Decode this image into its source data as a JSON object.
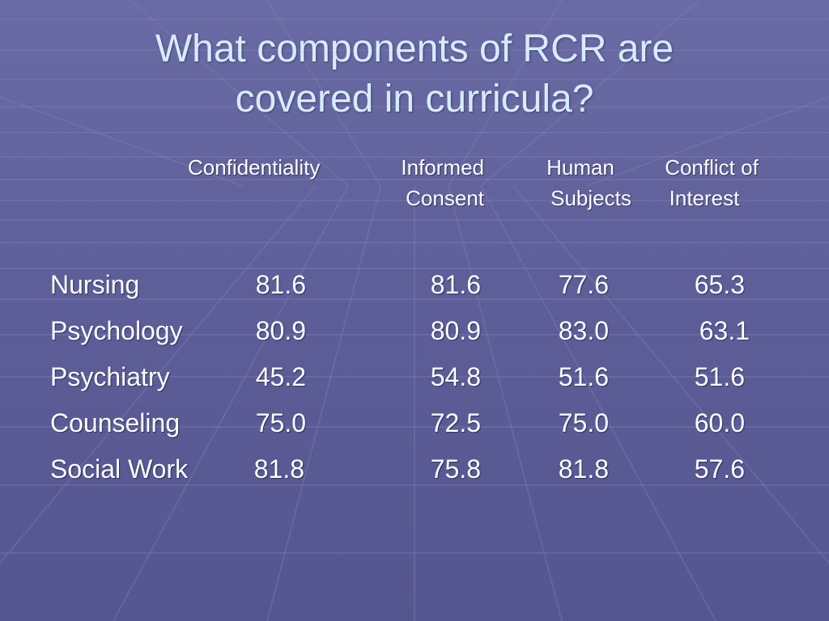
{
  "slide": {
    "title_line1": "What components of RCR are",
    "title_line2": "covered in curricula?"
  },
  "table": {
    "columns": [
      {
        "line1": "Confidentiality",
        "line2": ""
      },
      {
        "line1": "Informed",
        "line2": "Consent"
      },
      {
        "line1": "Human",
        "line2": "Subjects"
      },
      {
        "line1": "Conflict of",
        "line2": "Interest"
      }
    ],
    "rows": [
      {
        "label": "Nursing",
        "values": [
          "81.6",
          "81.6",
          "77.6",
          "65.3"
        ]
      },
      {
        "label": "Psychology",
        "values": [
          "80.9",
          "80.9",
          "83.0",
          "63.1"
        ]
      },
      {
        "label": "Psychiatry",
        "values": [
          "45.2",
          "54.8",
          "51.6",
          "51.6"
        ]
      },
      {
        "label": "Counseling",
        "values": [
          "75.0",
          "72.5",
          "75.0",
          "60.0"
        ]
      },
      {
        "label": "Social Work",
        "values": [
          "81.8",
          "75.8",
          "81.8",
          "57.6"
        ]
      }
    ]
  },
  "colors": {
    "background": "#5f5f9a",
    "title": "#d6ecff",
    "text": "#ffffff"
  }
}
